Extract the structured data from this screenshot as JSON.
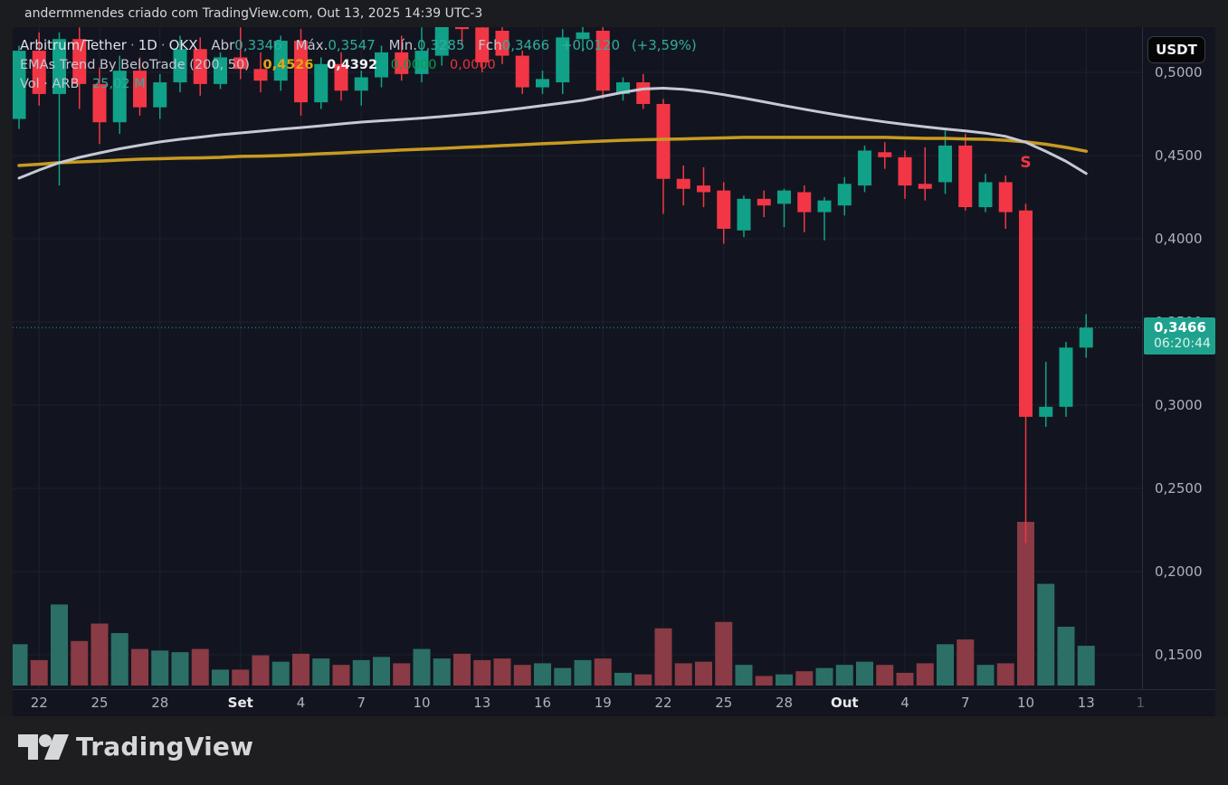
{
  "attribution": "andermmendes criado com TradingView.com, Out 13, 2025 14:39 UTC-3",
  "header": {
    "symbol_line": {
      "symbol": "Arbitrum/Tether",
      "separator": "·",
      "interval": "1D",
      "exchange": "OKX",
      "open_label": "Abr",
      "open": "0,3346",
      "high_label": "Máx.",
      "high": "0,3547",
      "low_label": "Mín.",
      "low": "0,3285",
      "close_label": "Fch",
      "close": "0,3466",
      "change": "+0,0120",
      "change_pct": "(+3,59%)"
    },
    "indicator_line": {
      "name": "EMAs Trend By BeloTrade (200, 50)",
      "ema200_value": "0,4526",
      "ema50_value": "0,4392",
      "signal_up_value": "0,0000",
      "signal_down_value": "0,0000"
    },
    "volume_line": {
      "label": "Vol · ARB",
      "value": "25,02 M"
    }
  },
  "axis": {
    "currency_button": "USDT",
    "price_ticks": [
      {
        "label": "0,5000",
        "value": 0.5
      },
      {
        "label": "0,4500",
        "value": 0.45
      },
      {
        "label": "0,4000",
        "value": 0.4
      },
      {
        "label": "0,3500",
        "value": 0.35
      },
      {
        "label": "0,3000",
        "value": 0.3
      },
      {
        "label": "0,2500",
        "value": 0.25
      },
      {
        "label": "0,2000",
        "value": 0.2
      },
      {
        "label": "0,1500",
        "value": 0.15
      }
    ],
    "price_badge": {
      "price": "0,3466",
      "countdown": "06:20:44"
    },
    "time_ticks": [
      {
        "label": "22",
        "day": 1
      },
      {
        "label": "25",
        "day": 4
      },
      {
        "label": "28",
        "day": 7
      },
      {
        "label": "Set",
        "day": 11,
        "bold": true
      },
      {
        "label": "4",
        "day": 14
      },
      {
        "label": "7",
        "day": 17
      },
      {
        "label": "10",
        "day": 20
      },
      {
        "label": "13",
        "day": 23
      },
      {
        "label": "16",
        "day": 26
      },
      {
        "label": "19",
        "day": 29
      },
      {
        "label": "22",
        "day": 32
      },
      {
        "label": "25",
        "day": 35
      },
      {
        "label": "28",
        "day": 38
      },
      {
        "label": "Out",
        "day": 41,
        "bold": true
      },
      {
        "label": "4",
        "day": 44
      },
      {
        "label": "7",
        "day": 47
      },
      {
        "label": "10",
        "day": 50
      },
      {
        "label": "13",
        "day": 53
      },
      {
        "label": "1",
        "day": 55.7,
        "faint": true
      }
    ]
  },
  "colors": {
    "up": "#10a188",
    "down": "#f23645",
    "vol_up": "#2c6f66",
    "vol_down": "#8a3b45",
    "ema_fast": "#c6c9d3",
    "ema_slow": "#c79a22",
    "grid": "#1c2130",
    "badge": "#1fa28d",
    "accent": "#2eae9d"
  },
  "signal_marker": {
    "text": "S",
    "day": 50,
    "price": 0.443
  },
  "footer": {
    "brand": "TradingView"
  },
  "chart_data": {
    "type": "candlestick",
    "title": "Arbitrum/Tether",
    "interval": "1D",
    "exchange": "OKX",
    "price_axis_range": [
      0.1435,
      0.5275
    ],
    "grid": true,
    "last_price": 0.3466,
    "last_change": 0.012,
    "last_volume_m": 25.02,
    "ema50_last": 0.4392,
    "ema200_last": 0.4526,
    "dates": [
      "2025-08-21",
      "2025-08-22",
      "2025-08-23",
      "2025-08-24",
      "2025-08-25",
      "2025-08-26",
      "2025-08-27",
      "2025-08-28",
      "2025-08-29",
      "2025-08-30",
      "2025-08-31",
      "2025-09-01",
      "2025-09-02",
      "2025-09-03",
      "2025-09-04",
      "2025-09-05",
      "2025-09-06",
      "2025-09-07",
      "2025-09-08",
      "2025-09-09",
      "2025-09-10",
      "2025-09-11",
      "2025-09-12",
      "2025-09-13",
      "2025-09-14",
      "2025-09-15",
      "2025-09-16",
      "2025-09-17",
      "2025-09-18",
      "2025-09-19",
      "2025-09-20",
      "2025-09-21",
      "2025-09-22",
      "2025-09-23",
      "2025-09-24",
      "2025-09-25",
      "2025-09-26",
      "2025-09-27",
      "2025-09-28",
      "2025-09-29",
      "2025-09-30",
      "2025-10-01",
      "2025-10-02",
      "2025-10-03",
      "2025-10-04",
      "2025-10-05",
      "2025-10-06",
      "2025-10-07",
      "2025-10-08",
      "2025-10-09",
      "2025-10-10",
      "2025-10-11",
      "2025-10-12",
      "2025-10-13"
    ],
    "ohlc": [
      [
        0.472,
        0.516,
        0.466,
        0.513
      ],
      [
        0.513,
        0.524,
        0.48,
        0.487
      ],
      [
        0.487,
        0.524,
        0.432,
        0.52
      ],
      [
        0.52,
        0.527,
        0.478,
        0.493
      ],
      [
        0.493,
        0.503,
        0.457,
        0.47
      ],
      [
        0.47,
        0.51,
        0.463,
        0.501
      ],
      [
        0.501,
        0.509,
        0.474,
        0.479
      ],
      [
        0.479,
        0.499,
        0.472,
        0.494
      ],
      [
        0.494,
        0.522,
        0.488,
        0.514
      ],
      [
        0.514,
        0.521,
        0.486,
        0.493
      ],
      [
        0.493,
        0.512,
        0.49,
        0.509
      ],
      [
        0.509,
        0.527,
        0.496,
        0.502
      ],
      [
        0.502,
        0.512,
        0.488,
        0.495
      ],
      [
        0.495,
        0.522,
        0.489,
        0.519
      ],
      [
        0.519,
        0.526,
        0.474,
        0.482
      ],
      [
        0.482,
        0.509,
        0.478,
        0.505
      ],
      [
        0.505,
        0.512,
        0.483,
        0.489
      ],
      [
        0.489,
        0.501,
        0.48,
        0.497
      ],
      [
        0.497,
        0.516,
        0.491,
        0.512
      ],
      [
        0.512,
        0.522,
        0.495,
        0.499
      ],
      [
        0.499,
        0.527,
        0.494,
        0.513
      ],
      [
        0.51,
        0.531,
        0.504,
        0.528
      ],
      [
        0.528,
        0.531,
        0.516,
        0.526
      ],
      [
        0.527,
        0.53,
        0.5,
        0.506
      ],
      [
        0.525,
        0.528,
        0.505,
        0.51
      ],
      [
        0.51,
        0.513,
        0.487,
        0.491
      ],
      [
        0.491,
        0.501,
        0.487,
        0.496
      ],
      [
        0.494,
        0.526,
        0.487,
        0.521
      ],
      [
        0.52,
        0.529,
        0.513,
        0.524
      ],
      [
        0.525,
        0.529,
        0.484,
        0.489
      ],
      [
        0.487,
        0.497,
        0.483,
        0.494
      ],
      [
        0.494,
        0.499,
        0.478,
        0.481
      ],
      [
        0.481,
        0.484,
        0.415,
        0.436
      ],
      [
        0.436,
        0.444,
        0.42,
        0.43
      ],
      [
        0.432,
        0.443,
        0.419,
        0.428
      ],
      [
        0.429,
        0.434,
        0.397,
        0.406
      ],
      [
        0.405,
        0.426,
        0.401,
        0.424
      ],
      [
        0.424,
        0.429,
        0.413,
        0.42
      ],
      [
        0.421,
        0.43,
        0.407,
        0.429
      ],
      [
        0.428,
        0.432,
        0.404,
        0.416
      ],
      [
        0.416,
        0.425,
        0.399,
        0.423
      ],
      [
        0.42,
        0.437,
        0.414,
        0.433
      ],
      [
        0.432,
        0.456,
        0.428,
        0.453
      ],
      [
        0.452,
        0.458,
        0.442,
        0.449
      ],
      [
        0.449,
        0.453,
        0.424,
        0.432
      ],
      [
        0.433,
        0.455,
        0.423,
        0.43
      ],
      [
        0.434,
        0.465,
        0.427,
        0.456
      ],
      [
        0.456,
        0.463,
        0.417,
        0.419
      ],
      [
        0.419,
        0.439,
        0.416,
        0.434
      ],
      [
        0.434,
        0.438,
        0.406,
        0.416
      ],
      [
        0.417,
        0.421,
        0.217,
        0.293
      ],
      [
        0.293,
        0.326,
        0.287,
        0.299
      ],
      [
        0.299,
        0.338,
        0.293,
        0.3346
      ],
      [
        0.3346,
        0.3547,
        0.3285,
        0.3466
      ]
    ],
    "volume_m": [
      26,
      16,
      51,
      28,
      39,
      33,
      23,
      22,
      21,
      23,
      10,
      10,
      19,
      15,
      20,
      17,
      13,
      16,
      18,
      14,
      23,
      17,
      20,
      16,
      17,
      13,
      14,
      11,
      16,
      17,
      8,
      7,
      36,
      14,
      15,
      40,
      13,
      6,
      7,
      9,
      11,
      13,
      15,
      13,
      8,
      14,
      26,
      29,
      13,
      14,
      103,
      64,
      37,
      25.02
    ],
    "ema50": [
      0.4364,
      0.4413,
      0.4457,
      0.4489,
      0.4516,
      0.4541,
      0.4562,
      0.4582,
      0.4598,
      0.4611,
      0.4625,
      0.4636,
      0.4647,
      0.4658,
      0.4668,
      0.4679,
      0.469,
      0.4701,
      0.4709,
      0.4717,
      0.4725,
      0.4734,
      0.4745,
      0.4757,
      0.477,
      0.4785,
      0.48,
      0.4816,
      0.4832,
      0.4856,
      0.488,
      0.49,
      0.4905,
      0.4898,
      0.4884,
      0.4866,
      0.4845,
      0.4823,
      0.48,
      0.4778,
      0.4757,
      0.4737,
      0.4719,
      0.4702,
      0.4687,
      0.4673,
      0.466,
      0.4648,
      0.4635,
      0.4615,
      0.458,
      0.4525,
      0.4465,
      0.4392
    ],
    "ema200": [
      0.444,
      0.4448,
      0.4457,
      0.4462,
      0.4467,
      0.4473,
      0.4478,
      0.4481,
      0.4484,
      0.4486,
      0.4489,
      0.4495,
      0.4497,
      0.45,
      0.4505,
      0.4511,
      0.4516,
      0.4522,
      0.4527,
      0.4533,
      0.4538,
      0.4543,
      0.4549,
      0.4554,
      0.456,
      0.4565,
      0.4571,
      0.4576,
      0.4582,
      0.4587,
      0.4592,
      0.4595,
      0.4598,
      0.46,
      0.4603,
      0.4606,
      0.4609,
      0.4609,
      0.4609,
      0.4609,
      0.4609,
      0.4609,
      0.4609,
      0.4609,
      0.4606,
      0.4603,
      0.4603,
      0.46,
      0.4598,
      0.4592,
      0.4582,
      0.4568,
      0.4549,
      0.4526
    ]
  }
}
